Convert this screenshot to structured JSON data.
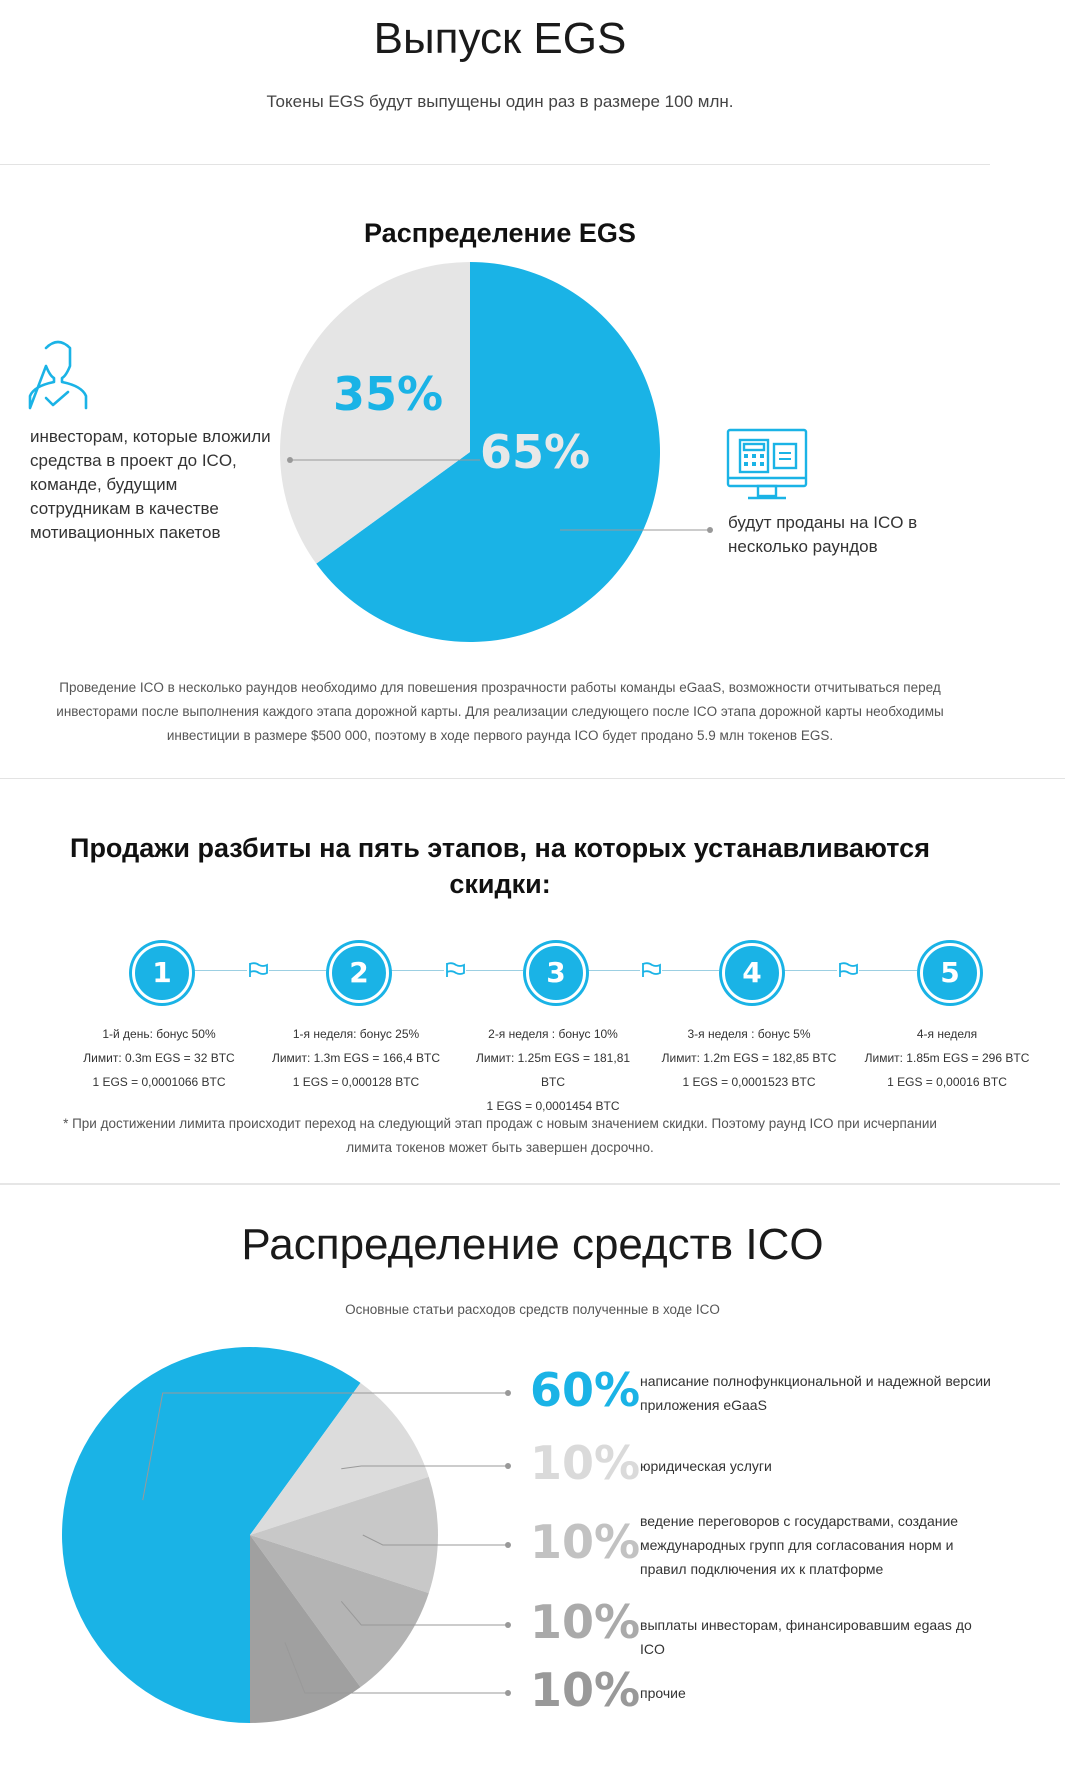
{
  "issue": {
    "title": "Выпуск EGS",
    "subtitle": "Токены EGS будут выпущены один раз в размере 100 млн."
  },
  "distribution": {
    "title": "Распределение EGS",
    "left_description": "инвесторам, которые вложили средства в проект до ICO, команде, будущим сотрудникам в качестве мотивационных пакетов",
    "right_description": "будут проданы на ICO в несколько раундов",
    "note": "Проведение ICO в несколько раундов необходимо для повешения прозрачности работы команды eGaaS, возможности отчитываться перед инвесторами после выполнения каждого этапа дорожной карты. Для реализации следующего после ICO этапа дорожной карты необходимы инвестиции в размере $500 000, поэтому в ходе первого раунда ICO будет продано 5.9 млн токенов EGS.",
    "icons": {
      "left": "person-check-icon",
      "right": "monitor-calculator-icon"
    },
    "colors": {
      "primary": "#1ab3e6",
      "secondary": "#e5e5e5"
    }
  },
  "stages": {
    "title": "Продажи разбиты на пять этапов, на которых устанавливаются скидки:",
    "items": [
      {
        "number": "1",
        "label": "1-й день: бонус 50%",
        "limit": "Лимит: 0.3m EGS = 32 BTC",
        "price": "1 EGS = 0,0001066 BTC"
      },
      {
        "number": "2",
        "label": "1-я неделя: бонус 25%",
        "limit": "Лимит: 1.3m EGS = 166,4 BTC",
        "price": "1 EGS = 0,000128 BTC"
      },
      {
        "number": "3",
        "label": "2-я неделя : бонус 10%",
        "limit": "Лимит: 1.25m EGS = 181,81 BTC",
        "price": "1 EGS = 0,0001454 BTC"
      },
      {
        "number": "4",
        "label": "3-я неделя : бонус 5%",
        "limit": "Лимит: 1.2m EGS = 182,85 BTC",
        "price": "1 EGS = 0,0001523 BTC"
      },
      {
        "number": "5",
        "label": "4-я неделя",
        "limit": "Лимит: 1.85m EGS = 296 BTC",
        "price": "1 EGS = 0,00016 BTC"
      }
    ],
    "note": "* При достижении лимита происходит переход на следующий этап продаж с новым значением скидки. Поэтому раунд ICO при исчерпании лимита токенов может быть завершен досрочно."
  },
  "funds": {
    "title": "Распределение средств ICO",
    "subtitle": "Основные статьи расходов средств полученные в ходе ICO"
  },
  "chart_data": [
    {
      "type": "pie",
      "title": "Распределение EGS",
      "categories": [
        "будут проданы на ICO в несколько раундов",
        "инвесторам, которые вложили средства в проект до ICO, команде, будущим сотрудникам в качестве мотивационных пакетов"
      ],
      "values": [
        65,
        35
      ],
      "labels": [
        "65%",
        "35%"
      ],
      "colors": [
        "#1ab3e6",
        "#e5e5e5"
      ],
      "label_colors": [
        "#e8e8e8",
        "#1ab3e6"
      ]
    },
    {
      "type": "pie",
      "title": "Распределение средств ICO",
      "categories": [
        "написание полнофункциональной и надежной версии приложения eGaaS",
        "юридическая услуги",
        "ведение переговоров с государствами, создание международных групп для согласования норм и правил подключения их к платформе",
        "выплаты инвесторам, финансировавшим egaas до ICO",
        "прочие"
      ],
      "values": [
        60,
        10,
        10,
        10,
        10
      ],
      "labels": [
        "60%",
        "10%",
        "10%",
        "10%",
        "10%"
      ],
      "colors": [
        "#1ab3e6",
        "#dcdcdc",
        "#c8c8c8",
        "#b4b4b4",
        "#a0a0a0"
      ],
      "label_colors": [
        "#1ab3e6",
        "#dadada",
        "#c2c2c2",
        "#aaaaaa",
        "#999999"
      ]
    }
  ]
}
